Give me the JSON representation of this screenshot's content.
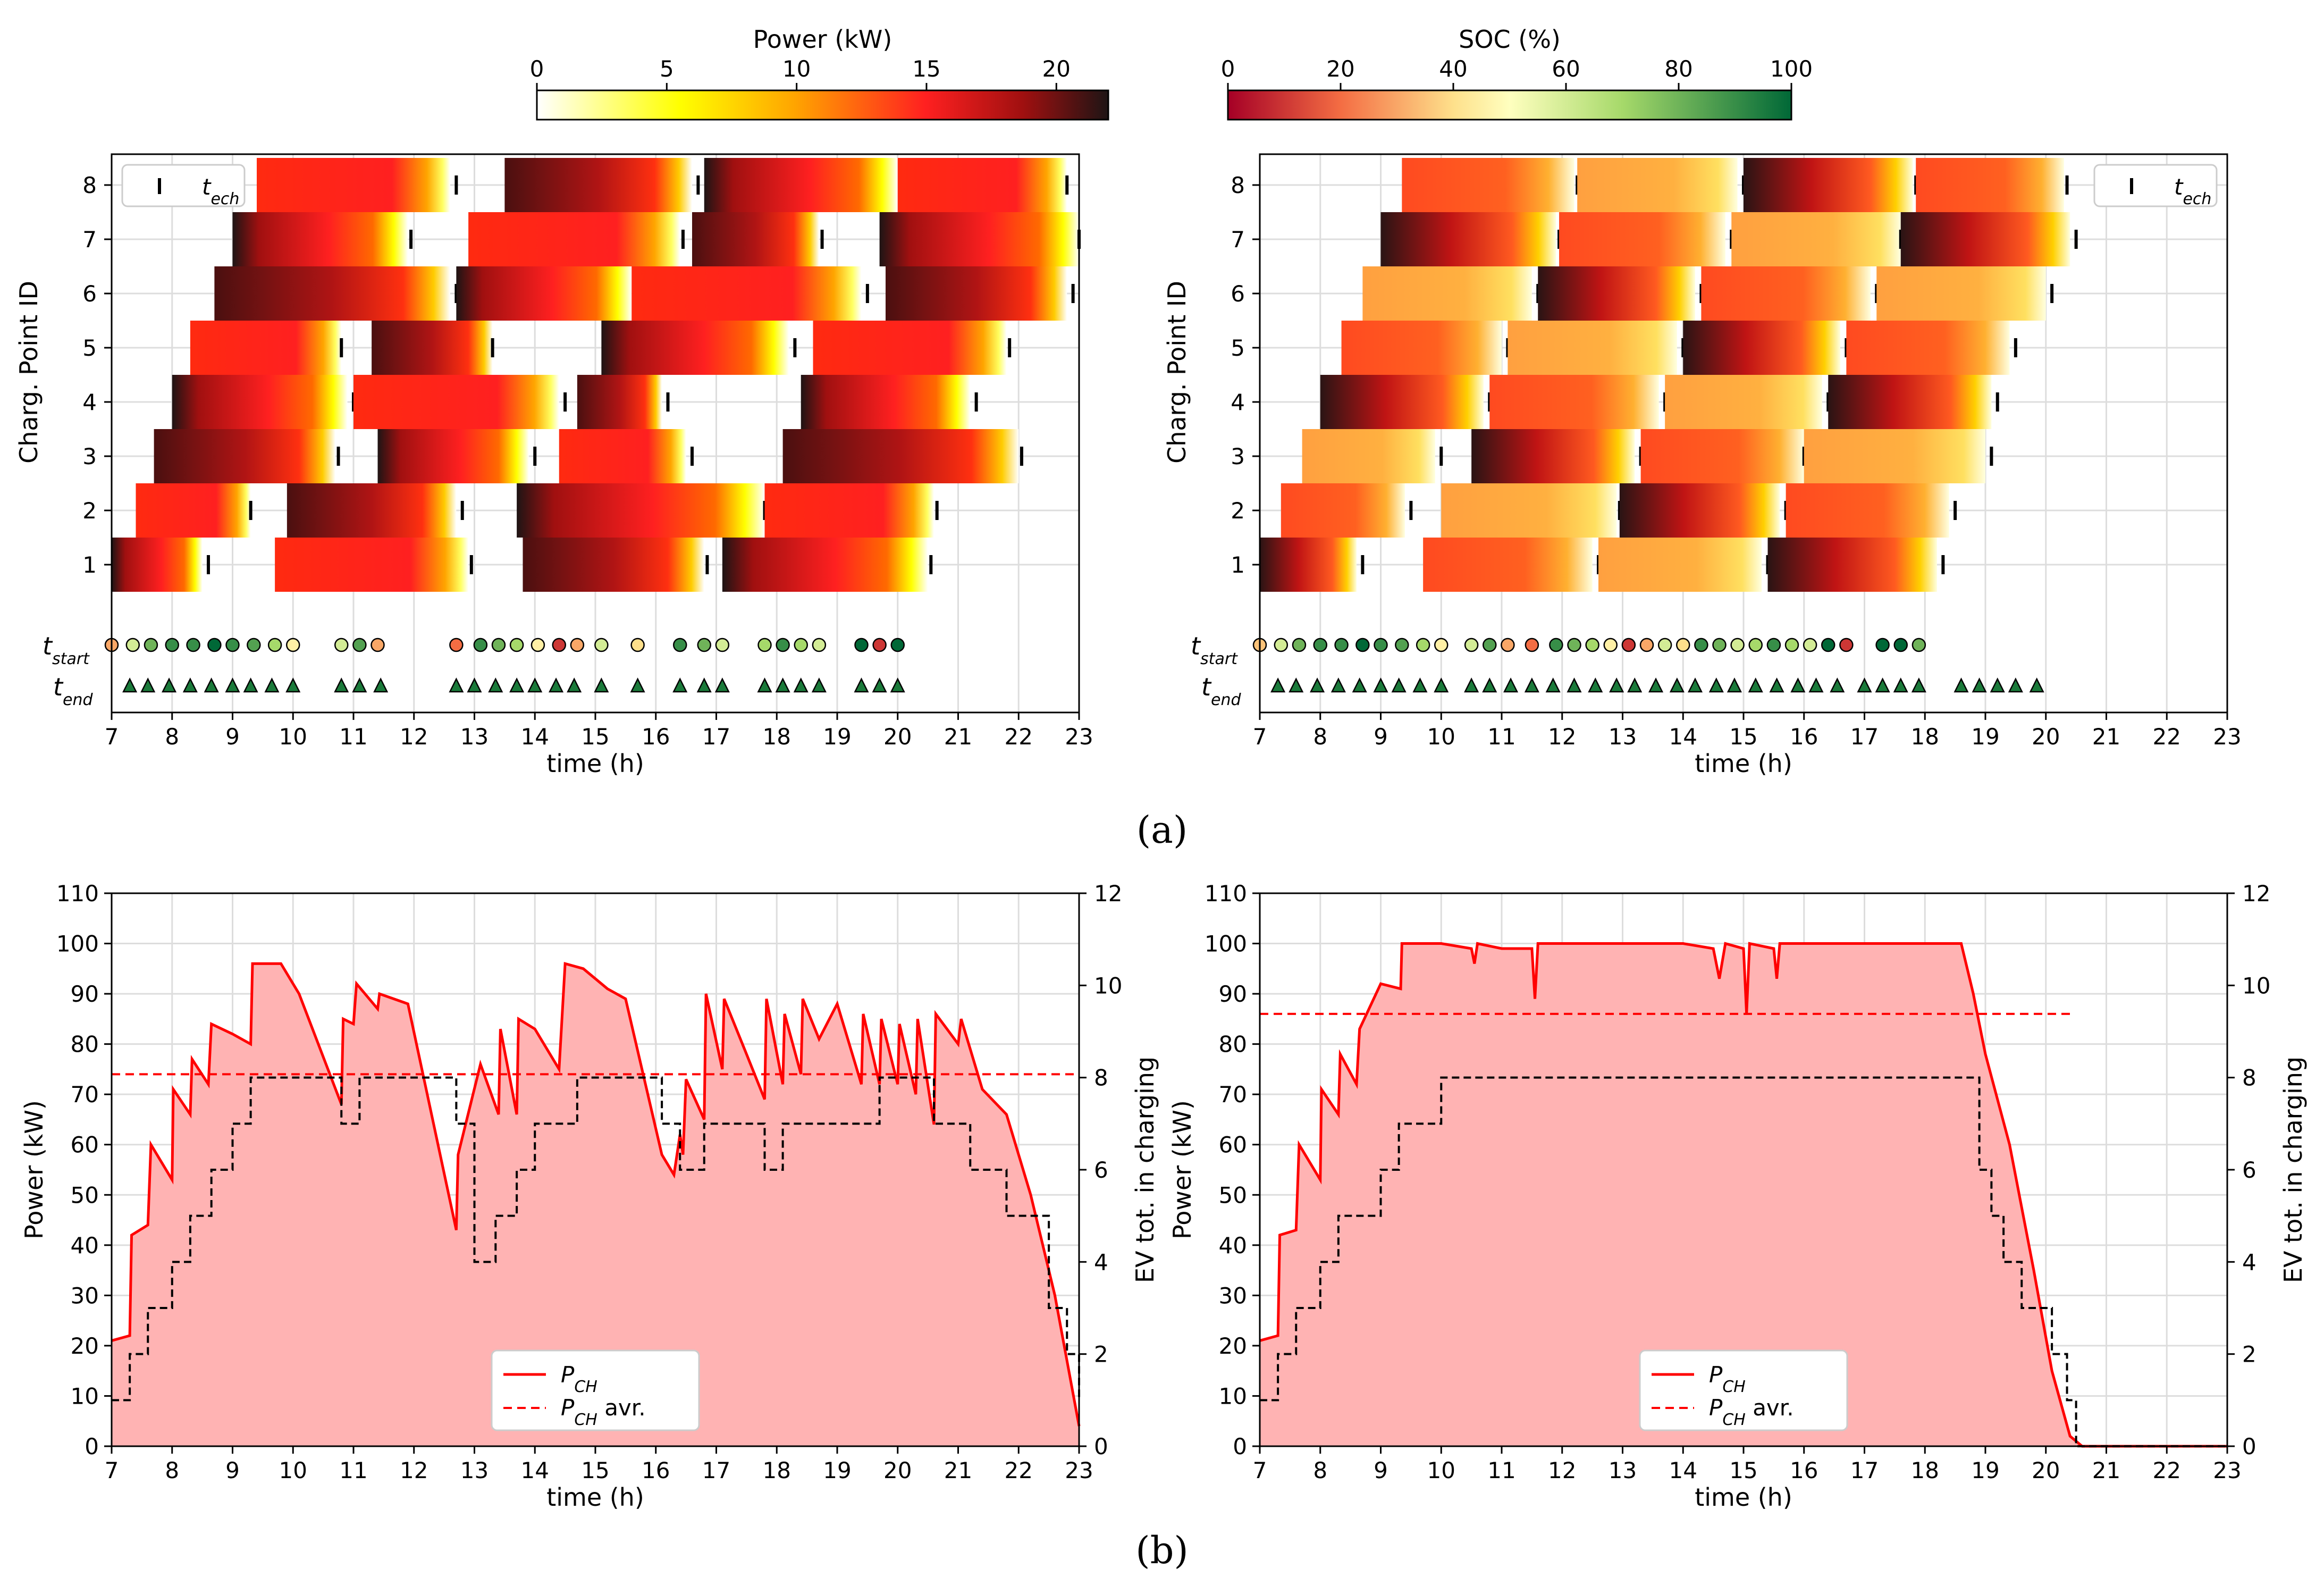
{
  "figure": {
    "panel_a_label": "(a)",
    "panel_b_label": "(b)",
    "colors": {
      "red": "#ff0000",
      "fill": "#ffb3b3",
      "black": "#000000",
      "grid": "#dddddd"
    }
  },
  "chart_data": [
    {
      "id": "a-left",
      "type": "heatmap",
      "title": "Power (kW)",
      "colorbar_label": "Power (kW)",
      "colorbar_ticks": [
        "0",
        "5",
        "10",
        "15",
        "20"
      ],
      "colorbar_range": [
        0,
        22
      ],
      "colormap": "hot_r",
      "xlabel": "time (h)",
      "ylabel": "Charg. Point ID",
      "xlim": [
        7,
        23
      ],
      "x_ticks": [
        "7",
        "8",
        "9",
        "10",
        "11",
        "12",
        "13",
        "14",
        "15",
        "16",
        "17",
        "18",
        "19",
        "20",
        "21",
        "22",
        "23"
      ],
      "y_ticks": [
        "1",
        "2",
        "3",
        "4",
        "5",
        "6",
        "7",
        "8"
      ],
      "row_labels": [
        "t_start",
        "t_end"
      ],
      "legend": {
        "entry": "t_ech",
        "position": "top-left"
      },
      "sessions": [
        {
          "cp": 1,
          "start": 7.0,
          "end": 8.5,
          "tech": 8.6
        },
        {
          "cp": 1,
          "start": 9.7,
          "end": 12.9,
          "tech": 12.95
        },
        {
          "cp": 1,
          "start": 13.8,
          "end": 16.8,
          "tech": 16.85
        },
        {
          "cp": 1,
          "start": 17.1,
          "end": 20.5,
          "tech": 20.55
        },
        {
          "cp": 2,
          "start": 7.4,
          "end": 9.3,
          "tech": 9.3
        },
        {
          "cp": 2,
          "start": 9.9,
          "end": 12.7,
          "tech": 12.8
        },
        {
          "cp": 2,
          "start": 13.7,
          "end": 17.8,
          "tech": 17.8
        },
        {
          "cp": 2,
          "start": 17.8,
          "end": 20.6,
          "tech": 20.65
        },
        {
          "cp": 3,
          "start": 7.7,
          "end": 10.7,
          "tech": 10.75
        },
        {
          "cp": 3,
          "start": 11.4,
          "end": 13.9,
          "tech": 14.0
        },
        {
          "cp": 3,
          "start": 14.4,
          "end": 16.5,
          "tech": 16.6
        },
        {
          "cp": 3,
          "start": 18.1,
          "end": 22.0,
          "tech": 22.05
        },
        {
          "cp": 4,
          "start": 8.0,
          "end": 10.9,
          "tech": 11.0
        },
        {
          "cp": 4,
          "start": 11.0,
          "end": 14.4,
          "tech": 14.5
        },
        {
          "cp": 4,
          "start": 14.7,
          "end": 16.1,
          "tech": 16.2
        },
        {
          "cp": 4,
          "start": 18.4,
          "end": 21.2,
          "tech": 21.3
        },
        {
          "cp": 5,
          "start": 8.3,
          "end": 10.8,
          "tech": 10.8
        },
        {
          "cp": 5,
          "start": 11.3,
          "end": 13.3,
          "tech": 13.3
        },
        {
          "cp": 5,
          "start": 15.1,
          "end": 18.2,
          "tech": 18.3
        },
        {
          "cp": 5,
          "start": 18.6,
          "end": 21.8,
          "tech": 21.85
        },
        {
          "cp": 6,
          "start": 8.7,
          "end": 12.6,
          "tech": 12.7
        },
        {
          "cp": 6,
          "start": 12.7,
          "end": 15.6,
          "tech": 15.7
        },
        {
          "cp": 6,
          "start": 15.6,
          "end": 19.4,
          "tech": 19.5
        },
        {
          "cp": 6,
          "start": 19.8,
          "end": 22.8,
          "tech": 22.9
        },
        {
          "cp": 7,
          "start": 9.0,
          "end": 11.9,
          "tech": 11.95
        },
        {
          "cp": 7,
          "start": 12.9,
          "end": 16.4,
          "tech": 16.45
        },
        {
          "cp": 7,
          "start": 16.6,
          "end": 18.7,
          "tech": 18.75
        },
        {
          "cp": 7,
          "start": 19.7,
          "end": 23.0,
          "tech": 23.0
        },
        {
          "cp": 8,
          "start": 9.4,
          "end": 12.6,
          "tech": 12.7
        },
        {
          "cp": 8,
          "start": 13.5,
          "end": 16.6,
          "tech": 16.7
        },
        {
          "cp": 8,
          "start": 16.8,
          "end": 20.0,
          "tech": 20.05
        },
        {
          "cp": 8,
          "start": 20.0,
          "end": 22.8,
          "tech": 22.8
        }
      ],
      "t_start_markers": [
        7.0,
        7.35,
        7.65,
        8.0,
        8.35,
        8.7,
        9.0,
        9.35,
        9.7,
        10.0,
        10.8,
        11.1,
        11.4,
        12.7,
        13.1,
        13.4,
        13.7,
        14.05,
        14.4,
        14.7,
        15.1,
        15.7,
        16.4,
        16.8,
        17.1,
        17.8,
        18.1,
        18.4,
        18.7,
        19.4,
        19.7,
        20.0
      ],
      "t_start_soc": [
        30,
        60,
        80,
        90,
        90,
        100,
        90,
        85,
        70,
        45,
        60,
        85,
        30,
        20,
        90,
        80,
        70,
        45,
        10,
        30,
        60,
        40,
        90,
        80,
        60,
        70,
        90,
        70,
        60,
        100,
        10,
        100
      ],
      "t_end_markers": [
        7.3,
        7.6,
        7.95,
        8.3,
        8.65,
        9.0,
        9.3,
        9.65,
        10.0,
        10.8,
        11.1,
        11.45,
        12.7,
        13.0,
        13.35,
        13.7,
        14.0,
        14.35,
        14.65,
        15.1,
        15.7,
        16.4,
        16.8,
        17.1,
        17.8,
        18.1,
        18.4,
        18.7,
        19.4,
        19.7,
        20.0
      ]
    },
    {
      "id": "a-right",
      "type": "heatmap",
      "title": "SOC (%)",
      "colorbar_label": "SOC (%)",
      "colorbar_ticks": [
        "0",
        "20",
        "40",
        "60",
        "80",
        "100"
      ],
      "colorbar_range": [
        0,
        100
      ],
      "colormap": "RdYlGn",
      "xlabel": "time (h)",
      "ylabel": "Charg. Point ID",
      "xlim": [
        7,
        23
      ],
      "x_ticks": [
        "7",
        "8",
        "9",
        "10",
        "11",
        "12",
        "13",
        "14",
        "15",
        "16",
        "17",
        "18",
        "19",
        "20",
        "21",
        "22",
        "23"
      ],
      "y_ticks": [
        "1",
        "2",
        "3",
        "4",
        "5",
        "6",
        "7",
        "8"
      ],
      "row_labels": [
        "t_start",
        "t_end"
      ],
      "legend": {
        "entry": "t_ech",
        "position": "top-right"
      },
      "sessions": [
        {
          "cp": 1,
          "start": 7.0,
          "end": 8.6,
          "tech": 8.7
        },
        {
          "cp": 1,
          "start": 9.7,
          "end": 12.5,
          "tech": 12.6
        },
        {
          "cp": 1,
          "start": 12.6,
          "end": 15.3,
          "tech": 15.4
        },
        {
          "cp": 1,
          "start": 15.4,
          "end": 18.2,
          "tech": 18.3
        },
        {
          "cp": 2,
          "start": 7.35,
          "end": 9.4,
          "tech": 9.5
        },
        {
          "cp": 2,
          "start": 10.0,
          "end": 12.9,
          "tech": 12.95
        },
        {
          "cp": 2,
          "start": 12.95,
          "end": 15.6,
          "tech": 15.7
        },
        {
          "cp": 2,
          "start": 15.7,
          "end": 18.4,
          "tech": 18.5
        },
        {
          "cp": 3,
          "start": 7.7,
          "end": 9.9,
          "tech": 10.0
        },
        {
          "cp": 3,
          "start": 10.5,
          "end": 13.2,
          "tech": 13.3
        },
        {
          "cp": 3,
          "start": 13.3,
          "end": 16.0,
          "tech": 16.0
        },
        {
          "cp": 3,
          "start": 16.0,
          "end": 19.0,
          "tech": 19.1
        },
        {
          "cp": 4,
          "start": 8.0,
          "end": 10.7,
          "tech": 10.8
        },
        {
          "cp": 4,
          "start": 10.8,
          "end": 13.6,
          "tech": 13.7
        },
        {
          "cp": 4,
          "start": 13.7,
          "end": 16.3,
          "tech": 16.4
        },
        {
          "cp": 4,
          "start": 16.4,
          "end": 19.1,
          "tech": 19.2
        },
        {
          "cp": 5,
          "start": 8.35,
          "end": 11.0,
          "tech": 11.1
        },
        {
          "cp": 5,
          "start": 11.1,
          "end": 13.9,
          "tech": 14.0
        },
        {
          "cp": 5,
          "start": 14.0,
          "end": 16.6,
          "tech": 16.7
        },
        {
          "cp": 5,
          "start": 16.7,
          "end": 19.4,
          "tech": 19.5
        },
        {
          "cp": 6,
          "start": 8.7,
          "end": 11.5,
          "tech": 11.6
        },
        {
          "cp": 6,
          "start": 11.6,
          "end": 14.2,
          "tech": 14.3
        },
        {
          "cp": 6,
          "start": 14.3,
          "end": 17.1,
          "tech": 17.2
        },
        {
          "cp": 6,
          "start": 17.2,
          "end": 20.0,
          "tech": 20.1
        },
        {
          "cp": 7,
          "start": 9.0,
          "end": 11.9,
          "tech": 11.95
        },
        {
          "cp": 7,
          "start": 11.95,
          "end": 14.7,
          "tech": 14.8
        },
        {
          "cp": 7,
          "start": 14.8,
          "end": 17.6,
          "tech": 17.6
        },
        {
          "cp": 7,
          "start": 17.6,
          "end": 20.4,
          "tech": 20.5
        },
        {
          "cp": 8,
          "start": 9.35,
          "end": 12.2,
          "tech": 12.25
        },
        {
          "cp": 8,
          "start": 12.25,
          "end": 14.9,
          "tech": 15.0
        },
        {
          "cp": 8,
          "start": 15.0,
          "end": 17.8,
          "tech": 17.85
        },
        {
          "cp": 8,
          "start": 17.85,
          "end": 20.3,
          "tech": 20.35
        }
      ],
      "t_start_markers": [
        7.0,
        7.35,
        7.65,
        8.0,
        8.35,
        8.7,
        9.0,
        9.35,
        9.7,
        10.0,
        10.5,
        10.8,
        11.1,
        11.5,
        11.9,
        12.2,
        12.5,
        12.8,
        13.1,
        13.4,
        13.7,
        14.0,
        14.3,
        14.6,
        14.9,
        15.2,
        15.5,
        15.8,
        16.1,
        16.4,
        16.7,
        17.3,
        17.6,
        17.9
      ],
      "t_start_soc": [
        35,
        60,
        80,
        90,
        90,
        100,
        90,
        85,
        70,
        45,
        60,
        85,
        30,
        20,
        90,
        80,
        70,
        45,
        10,
        30,
        60,
        40,
        90,
        80,
        60,
        70,
        90,
        70,
        60,
        100,
        10,
        100,
        100,
        80
      ],
      "t_end_markers": [
        7.3,
        7.6,
        7.95,
        8.3,
        8.65,
        9.0,
        9.3,
        9.65,
        10.0,
        10.5,
        10.8,
        11.15,
        11.5,
        11.85,
        12.2,
        12.55,
        12.9,
        13.2,
        13.55,
        13.9,
        14.2,
        14.55,
        14.85,
        15.2,
        15.55,
        15.9,
        16.2,
        16.55,
        17.0,
        17.3,
        17.6,
        17.9,
        18.6,
        18.9,
        19.2,
        19.5,
        19.85
      ]
    },
    {
      "id": "b-left",
      "type": "line",
      "xlabel": "time (h)",
      "ylabel": "Power (kW)",
      "ylabel_right": "EV tot. in charging",
      "xlim": [
        7,
        23
      ],
      "ylim": [
        0,
        110
      ],
      "ylim_right": [
        0,
        12
      ],
      "x_ticks": [
        "7",
        "8",
        "9",
        "10",
        "11",
        "12",
        "13",
        "14",
        "15",
        "16",
        "17",
        "18",
        "19",
        "20",
        "21",
        "22",
        "23"
      ],
      "y_ticks": [
        "0",
        "10",
        "20",
        "30",
        "40",
        "50",
        "60",
        "70",
        "80",
        "90",
        "100",
        "110"
      ],
      "y_ticks_right": [
        "0",
        "2",
        "4",
        "6",
        "8",
        "10",
        "12"
      ],
      "legend": {
        "entries": [
          "P_CH",
          "P_CH avr."
        ],
        "position": "bottom-center"
      },
      "avg_power": 74,
      "power_series": {
        "x": [
          7.0,
          7.3,
          7.33,
          7.6,
          7.65,
          8.0,
          8.02,
          8.3,
          8.33,
          8.6,
          8.65,
          9.0,
          9.3,
          9.33,
          9.8,
          10.1,
          10.8,
          10.83,
          11.0,
          11.05,
          11.4,
          11.43,
          11.9,
          12.7,
          12.73,
          13.1,
          13.4,
          13.43,
          13.7,
          13.73,
          14.0,
          14.4,
          14.5,
          14.8,
          15.2,
          15.5,
          16.1,
          16.3,
          16.4,
          16.45,
          16.5,
          16.8,
          16.83,
          17.1,
          17.13,
          17.5,
          17.8,
          17.83,
          18.1,
          18.13,
          18.4,
          18.43,
          18.7,
          19.0,
          19.4,
          19.43,
          19.7,
          19.73,
          20.0,
          20.03,
          20.3,
          20.33,
          20.6,
          20.63,
          21.0,
          21.05,
          21.4,
          21.8,
          22.2,
          22.6,
          23.0
        ],
        "y": [
          21,
          22,
          42,
          44,
          60,
          53,
          71,
          66,
          77,
          72,
          84,
          82,
          80,
          96,
          96,
          90,
          68,
          85,
          84,
          92,
          87,
          90,
          88,
          43,
          58,
          76,
          66,
          83,
          66,
          85,
          83,
          75,
          96,
          95,
          91,
          89,
          58,
          54,
          62,
          58,
          73,
          65,
          90,
          75,
          89,
          78,
          69,
          89,
          72,
          86,
          74,
          89,
          81,
          88,
          72,
          86,
          72,
          85,
          72,
          84,
          70,
          85,
          64,
          86,
          80,
          85,
          71,
          66,
          50,
          30,
          4
        ]
      },
      "ev_series": {
        "x": [
          7.0,
          7.3,
          7.6,
          8.0,
          8.3,
          8.65,
          9.0,
          9.3,
          9.65,
          10.0,
          10.8,
          11.1,
          11.4,
          12.7,
          13.0,
          13.35,
          13.7,
          14.0,
          14.4,
          14.7,
          15.1,
          15.7,
          16.1,
          16.4,
          16.8,
          17.1,
          17.8,
          18.1,
          18.4,
          18.7,
          19.4,
          19.7,
          20.0,
          20.6,
          21.2,
          21.8,
          22.5,
          22.8,
          23.0
        ],
        "y": [
          1,
          2,
          3,
          4,
          5,
          6,
          7,
          8,
          8,
          8,
          7,
          8,
          8,
          7,
          4,
          5,
          6,
          7,
          7,
          8,
          8,
          8,
          7,
          6,
          7,
          7,
          6,
          7,
          7,
          7,
          7,
          8,
          8,
          7,
          6,
          5,
          3,
          2,
          1
        ]
      }
    },
    {
      "id": "b-right",
      "type": "line",
      "xlabel": "time (h)",
      "ylabel": "Power (kW)",
      "ylabel_right": "EV tot. in charging",
      "xlim": [
        7,
        23
      ],
      "ylim": [
        0,
        110
      ],
      "ylim_right": [
        0,
        12
      ],
      "x_ticks": [
        "7",
        "8",
        "9",
        "10",
        "11",
        "12",
        "13",
        "14",
        "15",
        "16",
        "17",
        "18",
        "19",
        "20",
        "21",
        "22",
        "23"
      ],
      "y_ticks": [
        "0",
        "10",
        "20",
        "30",
        "40",
        "50",
        "60",
        "70",
        "80",
        "90",
        "100",
        "110"
      ],
      "y_ticks_right": [
        "0",
        "2",
        "4",
        "6",
        "8",
        "10",
        "12"
      ],
      "legend": {
        "entries": [
          "P_CH",
          "P_CH avr."
        ],
        "position": "bottom-center"
      },
      "avg_power": 86,
      "avg_power_xrange": [
        7,
        20.4
      ],
      "power_series": {
        "x": [
          7.0,
          7.3,
          7.33,
          7.6,
          7.65,
          8.0,
          8.02,
          8.3,
          8.33,
          8.6,
          8.65,
          9.0,
          9.33,
          9.35,
          10.0,
          10.5,
          10.55,
          10.6,
          11.0,
          11.5,
          11.55,
          11.6,
          12.0,
          12.5,
          13.0,
          14.0,
          14.5,
          14.6,
          14.7,
          15.0,
          15.05,
          15.1,
          15.5,
          15.55,
          15.6,
          16.0,
          17.0,
          18.0,
          18.6,
          18.8,
          19.0,
          19.4,
          19.8,
          20.1,
          20.4,
          20.6,
          23.0
        ],
        "y": [
          21,
          22,
          42,
          43,
          60,
          53,
          71,
          66,
          78,
          72,
          83,
          92,
          91,
          100,
          100,
          99,
          96,
          100,
          99,
          99,
          89,
          100,
          100,
          100,
          100,
          100,
          99,
          93,
          100,
          99,
          86,
          100,
          99,
          93,
          100,
          100,
          100,
          100,
          100,
          90,
          78,
          60,
          35,
          15,
          2,
          0,
          0
        ]
      },
      "ev_series": {
        "x": [
          7.0,
          7.3,
          7.6,
          8.0,
          8.3,
          8.65,
          9.0,
          9.3,
          9.65,
          10.0,
          18.6,
          18.9,
          19.1,
          19.3,
          19.6,
          20.1,
          20.35,
          20.5,
          23.0
        ],
        "y": [
          1,
          2,
          3,
          4,
          5,
          5,
          6,
          7,
          7,
          8,
          8,
          6,
          5,
          4,
          3,
          2,
          1,
          0,
          0
        ]
      }
    }
  ]
}
